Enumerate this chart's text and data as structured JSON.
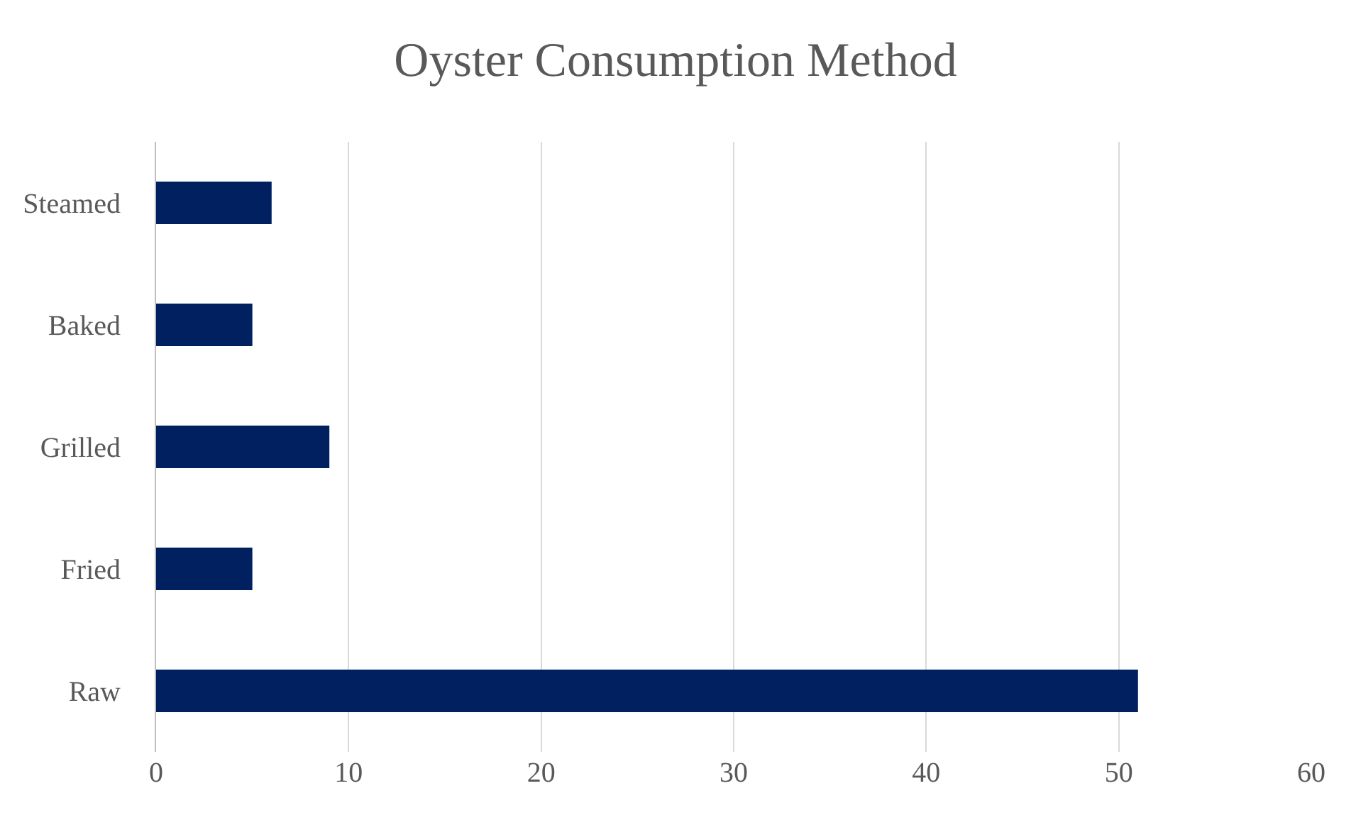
{
  "chart_data": {
    "type": "bar",
    "title": "Oyster Consumption Method",
    "orientation": "horizontal",
    "categories": [
      "Steamed",
      "Baked",
      "Grilled",
      "Fried",
      "Raw"
    ],
    "values": [
      6,
      5,
      9,
      5,
      51
    ],
    "color": "#002060",
    "xlim": [
      0,
      60
    ],
    "xticks": [
      0,
      10,
      20,
      30,
      40,
      50,
      60
    ],
    "grid": "x",
    "legend": false
  }
}
